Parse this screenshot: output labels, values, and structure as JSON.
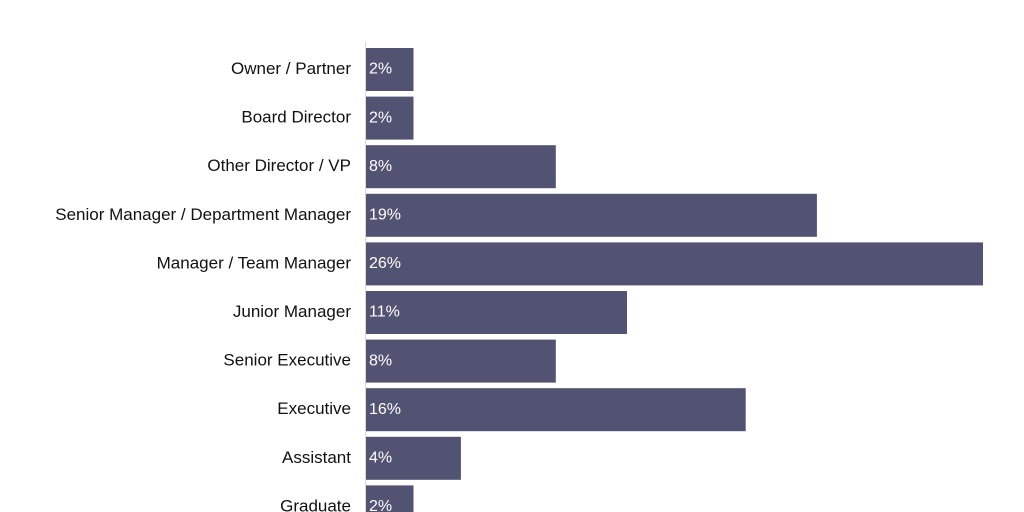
{
  "chart_data": {
    "type": "bar",
    "orientation": "horizontal",
    "categories": [
      "Owner / Partner",
      "Board Director",
      "Other Director / VP",
      "Senior Manager / Department Manager",
      "Manager / Team Manager",
      "Junior Manager",
      "Senior Executive",
      "Executive",
      "Assistant",
      "Graduate"
    ],
    "values": [
      2,
      2,
      8,
      19,
      26,
      11,
      8,
      16,
      4,
      2
    ],
    "value_labels": [
      "2%",
      "2%",
      "8%",
      "19%",
      "26%",
      "11%",
      "8%",
      "16%",
      "4%",
      "2%"
    ],
    "unit": "%",
    "xlim": [
      0,
      26
    ],
    "grid": false,
    "legend": "none",
    "bar_color": "#525272",
    "axis_color": "#d9d9d9",
    "value_label_color": "#ffffff"
  }
}
